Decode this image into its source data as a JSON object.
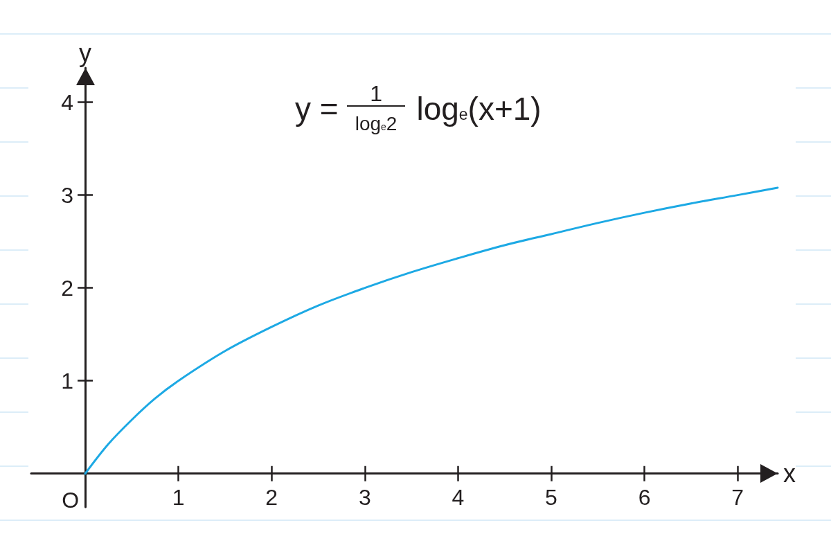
{
  "chart_data": {
    "type": "line",
    "xlabel": "x",
    "ylabel": "y",
    "x": [
      0,
      0.25,
      0.5,
      0.75,
      1,
      1.5,
      2,
      2.5,
      3,
      3.5,
      4,
      4.5,
      5,
      5.5,
      6,
      6.5,
      7,
      7.43
    ],
    "values": [
      0,
      0.32,
      0.58,
      0.81,
      1,
      1.32,
      1.58,
      1.81,
      2,
      2.17,
      2.32,
      2.46,
      2.58,
      2.7,
      2.81,
      2.91,
      3,
      3.08
    ],
    "color": "#1da9e4",
    "xlim": [
      -0.58,
      7.43
    ],
    "ylim": [
      -0.36,
      4.37
    ],
    "xticks": [
      1,
      2,
      3,
      4,
      5,
      6,
      7
    ],
    "yticks": [
      1,
      2,
      3,
      4
    ],
    "marker": "none",
    "line_style": "solid",
    "annotations": [
      "y =",
      "1",
      "log$_{e}$2",
      "log$_{e}$(x+1)",
      {
        "text": "O",
        "x": 0,
        "y": 0
      }
    ]
  }
}
